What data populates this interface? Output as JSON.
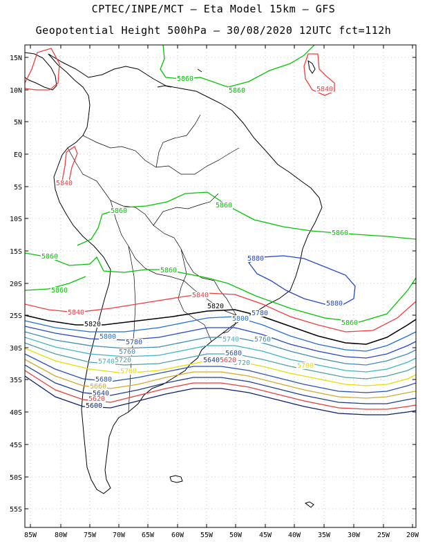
{
  "title": {
    "line1": "CPTEC/INPE/MCT –  Eta Model 15km – GFS",
    "line2": "Geopotential Height 500hPa – 30/08/2020 12UTC fct=112h"
  },
  "axes": {
    "lat_labels": [
      "15N",
      "10N",
      "5N",
      "EQ",
      "5S",
      "10S",
      "15S",
      "20S",
      "25S",
      "30S",
      "35S",
      "40S",
      "45S",
      "50S",
      "55S"
    ],
    "lon_labels": [
      "85W",
      "80W",
      "75W",
      "70W",
      "65W",
      "60W",
      "55W",
      "50W",
      "45W",
      "40W",
      "35W",
      "30W",
      "25W",
      "20W"
    ]
  },
  "colors": {
    "5860": "#00c400",
    "5840": "#f03c3c",
    "5820": "#000000",
    "5800": "#1e6ed8",
    "5780": "#2446c8",
    "5760": "#3c8cb4",
    "5740": "#3cb4c8",
    "5720": "#50a0a0",
    "5700": "#e6dc00",
    "5680": "#2850b4",
    "5660": "#d2aa28",
    "5640": "#1c3c8c",
    "5620": "#e63c3c",
    "5600": "#0a1e6e",
    "coast": "#000000",
    "grid": "#999999"
  },
  "contour_labels": [
    {
      "text": "5860",
      "color_key": "5860"
    },
    {
      "text": "5860",
      "color_key": "5860"
    },
    {
      "text": "5840",
      "color_key": "5840"
    },
    {
      "text": "5840",
      "color_key": "5840"
    },
    {
      "text": "5860",
      "color_key": "5860"
    },
    {
      "text": "5860",
      "color_key": "5860"
    },
    {
      "text": "5860",
      "color_key": "5860"
    },
    {
      "text": "5860",
      "color_key": "5860"
    },
    {
      "text": "5880",
      "color_key": "5780"
    },
    {
      "text": "5860",
      "color_key": "5860"
    },
    {
      "text": "5860",
      "color_key": "5860"
    },
    {
      "text": "5880",
      "color_key": "5780"
    },
    {
      "text": "5840",
      "color_key": "5840"
    },
    {
      "text": "5840",
      "color_key": "5840"
    },
    {
      "text": "5820",
      "color_key": "5820"
    },
    {
      "text": "5860",
      "color_key": "5860"
    },
    {
      "text": "5820",
      "color_key": "5820"
    },
    {
      "text": "5800",
      "color_key": "5800"
    },
    {
      "text": "5800",
      "color_key": "5800"
    },
    {
      "text": "5780",
      "color_key": "5780"
    },
    {
      "text": "5780",
      "color_key": "5780"
    },
    {
      "text": "5760",
      "color_key": "5760"
    },
    {
      "text": "5760",
      "color_key": "5760"
    },
    {
      "text": "5740",
      "color_key": "5740"
    },
    {
      "text": "5740",
      "color_key": "5740"
    },
    {
      "text": "5720",
      "color_key": "5720"
    },
    {
      "text": "5720",
      "color_key": "5720"
    },
    {
      "text": "5700",
      "color_key": "5700"
    },
    {
      "text": "5700",
      "color_key": "5700"
    },
    {
      "text": "5680",
      "color_key": "5680"
    },
    {
      "text": "5680",
      "color_key": "5680"
    },
    {
      "text": "5660",
      "color_key": "5660"
    },
    {
      "text": "5640",
      "color_key": "5640"
    },
    {
      "text": "5620",
      "color_key": "5620"
    },
    {
      "text": "5620",
      "color_key": "5620"
    },
    {
      "text": "5600",
      "color_key": "5600"
    },
    {
      "text": "5640",
      "color_key": "5640"
    }
  ]
}
